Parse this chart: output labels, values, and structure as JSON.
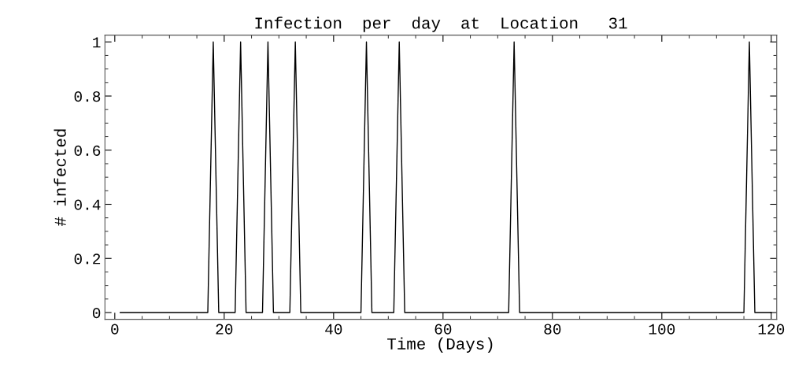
{
  "chart_data": {
    "type": "line",
    "title": "Infection  per  day  at  Location   31",
    "xlabel": "Time (Days)",
    "ylabel": "# infected",
    "x": [
      1,
      2,
      3,
      4,
      5,
      6,
      7,
      8,
      9,
      10,
      11,
      12,
      13,
      14,
      15,
      16,
      17,
      18,
      19,
      20,
      21,
      22,
      23,
      24,
      25,
      26,
      27,
      28,
      29,
      30,
      31,
      32,
      33,
      34,
      35,
      36,
      37,
      38,
      39,
      40,
      41,
      42,
      43,
      44,
      45,
      46,
      47,
      48,
      49,
      50,
      51,
      52,
      53,
      54,
      55,
      56,
      57,
      58,
      59,
      60,
      61,
      62,
      63,
      64,
      65,
      66,
      67,
      68,
      69,
      70,
      71,
      72,
      73,
      74,
      75,
      76,
      77,
      78,
      79,
      80,
      81,
      82,
      83,
      84,
      85,
      86,
      87,
      88,
      89,
      90,
      91,
      92,
      93,
      94,
      95,
      96,
      97,
      98,
      99,
      100,
      101,
      102,
      103,
      104,
      105,
      106,
      107,
      108,
      109,
      110,
      111,
      112,
      113,
      114,
      115,
      116,
      117,
      118,
      119,
      120
    ],
    "values": [
      0,
      0,
      0,
      0,
      0,
      0,
      0,
      0,
      0,
      0,
      0,
      0,
      0,
      0,
      0,
      0,
      0,
      1,
      0,
      0,
      0,
      0,
      1,
      0,
      0,
      0,
      0,
      1,
      0,
      0,
      0,
      0,
      1,
      0,
      0,
      0,
      0,
      0,
      0,
      0,
      0,
      0,
      0,
      0,
      0,
      1,
      0,
      0,
      0,
      0,
      0,
      1,
      0,
      0,
      0,
      0,
      0,
      0,
      0,
      0,
      0,
      0,
      0,
      0,
      0,
      0,
      0,
      0,
      0,
      0,
      0,
      0,
      1,
      0,
      0,
      0,
      0,
      0,
      0,
      0,
      0,
      0,
      0,
      0,
      0,
      0,
      0,
      0,
      0,
      0,
      0,
      0,
      0,
      0,
      0,
      0,
      0,
      0,
      0,
      0,
      0,
      0,
      0,
      0,
      0,
      0,
      0,
      0,
      0,
      0,
      0,
      0,
      0,
      0,
      0,
      1,
      0,
      0,
      0,
      0
    ],
    "color": "#000000",
    "xlim": [
      -1.8,
      121
    ],
    "ylim": [
      -0.025,
      1.025
    ],
    "xticks": [
      0,
      20,
      40,
      60,
      80,
      100,
      120
    ],
    "yticks": [
      0,
      0.2,
      0.4,
      0.6,
      0.8,
      1
    ],
    "grid": false,
    "legend": false,
    "marker": "none",
    "line_style": "solid"
  }
}
